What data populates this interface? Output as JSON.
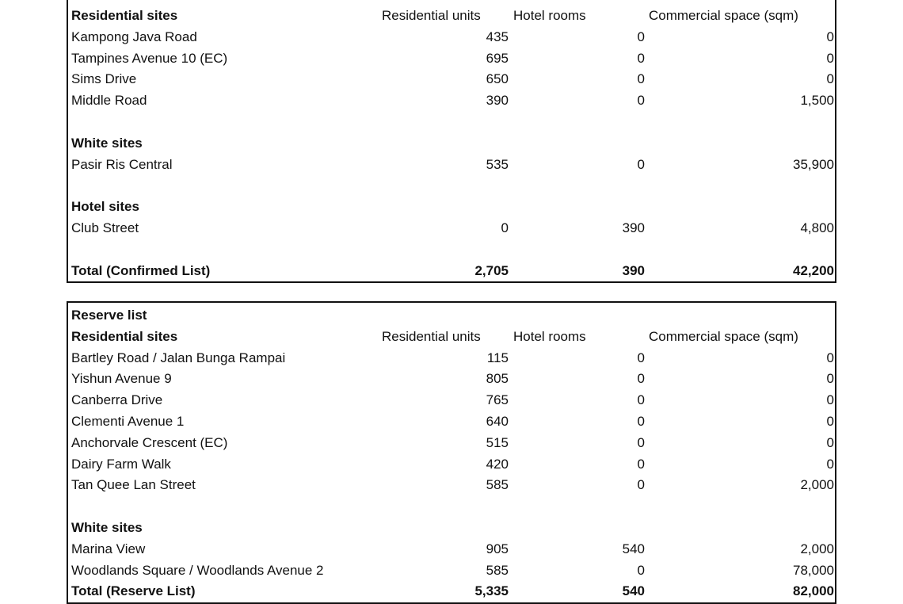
{
  "confirmed_list": {
    "rows": [
      {
        "type": "header",
        "name": "Residential sites",
        "cols": [
          "Residential units",
          "Hotel rooms",
          "Commercial space (sqm)"
        ]
      },
      {
        "type": "data",
        "name": "Kampong Java Road",
        "vals": [
          "435",
          "0",
          "0"
        ]
      },
      {
        "type": "data",
        "name": "Tampines Avenue 10 (EC)",
        "vals": [
          "695",
          "0",
          "0"
        ]
      },
      {
        "type": "data",
        "name": "Sims Drive",
        "vals": [
          "650",
          "0",
          "0"
        ]
      },
      {
        "type": "data",
        "name": "Middle Road",
        "vals": [
          "390",
          "0",
          "1,500"
        ]
      },
      {
        "type": "blank"
      },
      {
        "type": "section",
        "name": "White sites"
      },
      {
        "type": "data",
        "name": "Pasir Ris Central",
        "vals": [
          "535",
          "0",
          "35,900"
        ]
      },
      {
        "type": "blank"
      },
      {
        "type": "section",
        "name": "Hotel sites"
      },
      {
        "type": "data",
        "name": "Club Street",
        "vals": [
          "0",
          "390",
          "4,800"
        ]
      },
      {
        "type": "blank"
      },
      {
        "type": "total",
        "name": "Total (Confirmed List)",
        "vals": [
          "2,705",
          "390",
          "42,200"
        ]
      }
    ]
  },
  "reserve_list": {
    "rows": [
      {
        "type": "section",
        "name": "Reserve list"
      },
      {
        "type": "header",
        "name": "Residential sites",
        "cols": [
          "Residential units",
          "Hotel rooms",
          "Commercial space (sqm)"
        ]
      },
      {
        "type": "data",
        "name": "Bartley Road / Jalan Bunga Rampai",
        "vals": [
          "115",
          "0",
          "0"
        ]
      },
      {
        "type": "data",
        "name": "Yishun Avenue 9",
        "vals": [
          "805",
          "0",
          "0"
        ]
      },
      {
        "type": "data",
        "name": "Canberra Drive",
        "vals": [
          "765",
          "0",
          "0"
        ]
      },
      {
        "type": "data",
        "name": "Clementi Avenue 1",
        "vals": [
          "640",
          "0",
          "0"
        ]
      },
      {
        "type": "data",
        "name": "Anchorvale Crescent (EC)",
        "vals": [
          "515",
          "0",
          "0"
        ]
      },
      {
        "type": "data",
        "name": "Dairy Farm Walk",
        "vals": [
          "420",
          "0",
          "0"
        ]
      },
      {
        "type": "data",
        "name": "Tan Quee Lan Street",
        "vals": [
          "585",
          "0",
          "2,000"
        ]
      },
      {
        "type": "blank"
      },
      {
        "type": "section",
        "name": "White sites"
      },
      {
        "type": "data",
        "name": "Marina View",
        "vals": [
          "905",
          "540",
          "2,000"
        ]
      },
      {
        "type": "data",
        "name": "Woodlands Square / Woodlands Avenue 2",
        "vals": [
          "585",
          "0",
          "78,000"
        ]
      },
      {
        "type": "total",
        "name": "Total (Reserve List)",
        "vals": [
          "5,335",
          "540",
          "82,000"
        ]
      }
    ]
  }
}
